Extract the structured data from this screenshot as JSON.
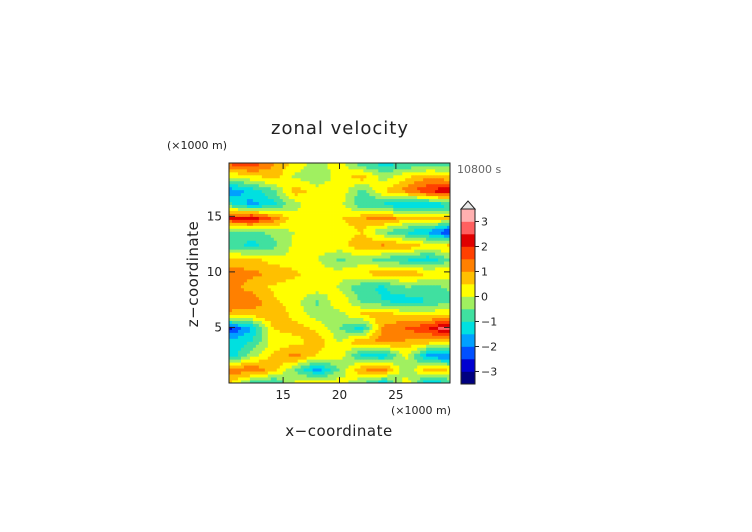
{
  "chart_data": {
    "type": "heatmap",
    "title": "zonal velocity",
    "xlabel": "x−coordinate",
    "ylabel": "z−coordinate",
    "x_unit": "(×1000 m)",
    "y_unit": "(×1000 m)",
    "time_label": "10800 s",
    "xlim": [
      10.2,
      29.8
    ],
    "ylim": [
      0,
      19.8
    ],
    "x_ticks": [
      "15",
      "20",
      "25"
    ],
    "x_tick_values": [
      15,
      20,
      25
    ],
    "y_ticks": [
      "5",
      "10",
      "15"
    ],
    "y_tick_values": [
      5,
      10,
      15
    ],
    "colorbar": {
      "tick_labels": [
        "3",
        "2",
        "1",
        "0",
        "−1",
        "−2",
        "−3"
      ],
      "tick_values": [
        3,
        2,
        1,
        0,
        -1,
        -2,
        -3
      ],
      "range": [
        -3.5,
        3.5
      ],
      "colors": [
        "#000080",
        "#0000d0",
        "#0050ff",
        "#00a0ff",
        "#00e0e0",
        "#40e0a0",
        "#a0f060",
        "#ffff00",
        "#ffc000",
        "#ff8000",
        "#ff4000",
        "#e00000",
        "#ff6060",
        "#ffb0b0"
      ],
      "extend": "max"
    },
    "z": [
      [
        0.6,
        -0.8,
        -1.2,
        0.1,
        0.5,
        0.3,
        -0.5,
        -1.5,
        0.4,
        -1.6,
        -0.9
      ],
      [
        1.2,
        1.5,
        0.8,
        -0.5,
        -1.8,
        -0.5,
        1.0,
        1.3,
        -0.5,
        0.8,
        0.5
      ],
      [
        -1.5,
        -0.3,
        0.6,
        1.2,
        0.4,
        0.3,
        -1.2,
        -1.5,
        0.2,
        -1.8,
        -2.1
      ],
      [
        -1.3,
        -1.0,
        0.2,
        0.3,
        0.8,
        0.0,
        1.0,
        1.2,
        0.9,
        0.7,
        0.3
      ],
      [
        -2.6,
        -1.5,
        0.5,
        0.7,
        0.4,
        -0.5,
        -1.2,
        1.1,
        1.5,
        2.0,
        3.0
      ],
      [
        0.9,
        0.7,
        1.0,
        0.3,
        -0.3,
        -0.2,
        0.6,
        0.8,
        0.4,
        0.3,
        0.5
      ],
      [
        1.3,
        1.4,
        0.6,
        0.2,
        -0.6,
        0.5,
        -0.6,
        -1.0,
        -1.3,
        -1.0,
        -0.6
      ],
      [
        1.2,
        0.8,
        0.4,
        0.2,
        0.4,
        -0.1,
        -0.9,
        -1.1,
        -0.5,
        -0.7,
        -0.4
      ],
      [
        1.3,
        1.1,
        1.0,
        0.6,
        0.3,
        0.2,
        0.5,
        0.9,
        0.8,
        0.6,
        0.4
      ],
      [
        0.6,
        0.7,
        0.2,
        0.1,
        0.0,
        -0.6,
        -0.3,
        -0.8,
        -1.0,
        -1.4,
        -0.6
      ],
      [
        -0.7,
        -1.2,
        -0.7,
        0.2,
        0.3,
        0.3,
        0.9,
        1.1,
        0.9,
        0.4,
        0.7
      ],
      [
        -0.5,
        -0.8,
        -0.3,
        0.0,
        0.5,
        0.2,
        0.5,
        -0.5,
        -1.1,
        -1.6,
        -2.7
      ],
      [
        2.0,
        2.4,
        1.4,
        0.2,
        0.5,
        0.4,
        0.9,
        1.3,
        0.7,
        0.9,
        0.5
      ],
      [
        -0.8,
        -1.7,
        -1.2,
        -0.2,
        0.4,
        0.2,
        -0.9,
        -1.1,
        -1.7,
        -1.6,
        -1.1
      ],
      [
        -1.9,
        -1.3,
        -0.6,
        0.8,
        0.2,
        0.4,
        -0.7,
        0.5,
        1.2,
        2.0,
        2.5
      ],
      [
        0.0,
        0.3,
        0.7,
        -0.1,
        -0.4,
        0.2,
        0.8,
        -0.3,
        0.4,
        0.9,
        0.6
      ],
      [
        1.6,
        2.0,
        1.1,
        0.3,
        -0.2,
        0.3,
        -0.9,
        -1.2,
        -1.0,
        -1.0,
        -0.8
      ]
    ]
  }
}
